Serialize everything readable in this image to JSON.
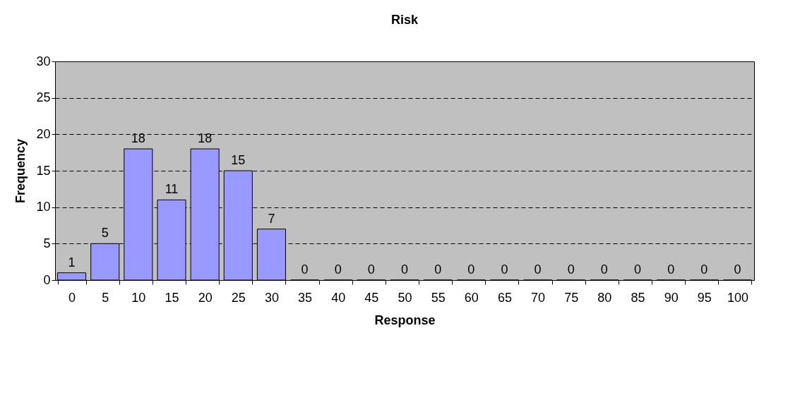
{
  "chart_data": {
    "type": "bar",
    "title": "Risk",
    "xlabel": "Response",
    "ylabel": "Frequency",
    "categories": [
      "0",
      "5",
      "10",
      "15",
      "20",
      "25",
      "30",
      "35",
      "40",
      "45",
      "50",
      "55",
      "60",
      "65",
      "70",
      "75",
      "80",
      "85",
      "90",
      "95",
      "100"
    ],
    "values": [
      1,
      5,
      18,
      11,
      18,
      15,
      7,
      0,
      0,
      0,
      0,
      0,
      0,
      0,
      0,
      0,
      0,
      0,
      0,
      0,
      0
    ],
    "color": "#9999ff",
    "ylim": [
      0,
      30
    ],
    "yticks": [
      0,
      5,
      10,
      15,
      20,
      25,
      30
    ],
    "grid": "y",
    "data_labels": true
  }
}
